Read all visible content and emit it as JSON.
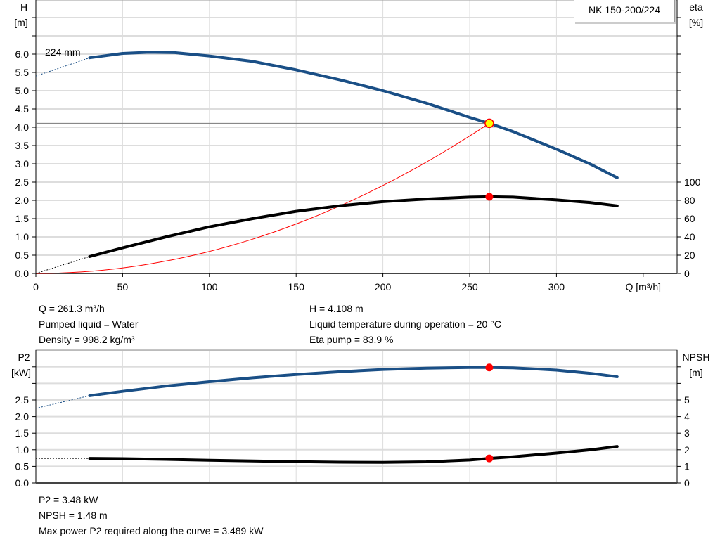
{
  "chart_data": [
    {
      "type": "line",
      "title": "NK 150-200/224",
      "xlabel": "Q [m³/h]",
      "ylabel_left": [
        "H",
        "[m]"
      ],
      "ylabel_right": [
        "eta",
        "[%]"
      ],
      "xlim": [
        0,
        350
      ],
      "ylim_left": [
        0,
        7
      ],
      "ylim_right_eta": [
        0,
        100
      ],
      "x_ticks": [
        "0",
        "50",
        "100",
        "150",
        "200",
        "250",
        "300"
      ],
      "y_ticks_left": [
        "0.0",
        "0.5",
        "1.0",
        "1.5",
        "2.0",
        "2.5",
        "3.0",
        "3.5",
        "4.0",
        "4.5",
        "5.0",
        "5.5",
        "6.0"
      ],
      "y_ticks_right": [
        "0",
        "20",
        "40",
        "60",
        "80",
        "100"
      ],
      "grid": true,
      "curve_label": "224 mm",
      "series": [
        {
          "key": "H",
          "color": "#1a4f86",
          "axis": "left",
          "dashed_x": [
            0,
            31
          ],
          "dashed_y": [
            5.4,
            5.9
          ],
          "x": [
            31,
            50,
            65,
            80,
            100,
            125,
            150,
            175,
            200,
            225,
            250,
            261.3,
            275,
            300,
            320,
            335
          ],
          "y": [
            5.9,
            6.02,
            6.05,
            6.04,
            5.95,
            5.8,
            5.57,
            5.3,
            5.0,
            4.66,
            4.27,
            4.108,
            3.88,
            3.4,
            2.98,
            2.62
          ]
        },
        {
          "key": "eta",
          "color": "#000000",
          "axis": "right",
          "dashed_x": [
            0,
            31
          ],
          "dashed_y": [
            0,
            18.5
          ],
          "x": [
            31,
            50,
            75,
            100,
            125,
            150,
            175,
            200,
            225,
            250,
            261.3,
            275,
            300,
            320,
            335
          ],
          "y": [
            18.5,
            28,
            40,
            51,
            60,
            68,
            74,
            78.5,
            81.5,
            83.5,
            83.9,
            83.5,
            80.5,
            77.5,
            74
          ]
        },
        {
          "key": "system",
          "color": "#ff0000",
          "axis": "left",
          "system_curve": true,
          "x_end": 261.3,
          "y_end": 4.108
        }
      ],
      "operating_point": {
        "Q": 261.3,
        "H": 4.108,
        "eta": 83.9
      }
    },
    {
      "type": "line",
      "ylabel_left": [
        "P2",
        "[kW]"
      ],
      "ylabel_right": [
        "NPSH",
        "[m]"
      ],
      "xlim": [
        0,
        350
      ],
      "ylim_left": [
        0,
        4
      ],
      "ylim_right": [
        0,
        8
      ],
      "y_ticks_left": [
        "0.0",
        "0.5",
        "1.0",
        "1.5",
        "2.0",
        "2.5"
      ],
      "y_ticks_right": [
        "0",
        "1",
        "2",
        "3",
        "4",
        "5"
      ],
      "grid": true,
      "series": [
        {
          "key": "P2",
          "color": "#1a4f86",
          "axis": "left",
          "dashed_x": [
            0,
            31
          ],
          "dashed_y": [
            2.25,
            2.63
          ],
          "x": [
            31,
            50,
            75,
            100,
            125,
            150,
            175,
            200,
            225,
            250,
            261.3,
            275,
            300,
            320,
            335
          ],
          "y": [
            2.63,
            2.76,
            2.92,
            3.05,
            3.17,
            3.27,
            3.35,
            3.42,
            3.46,
            3.48,
            3.48,
            3.47,
            3.4,
            3.3,
            3.2
          ]
        },
        {
          "key": "NPSH",
          "color": "#000000",
          "axis": "right",
          "dashed_x": [
            0,
            31
          ],
          "dashed_y": [
            1.48,
            1.48
          ],
          "x": [
            31,
            50,
            75,
            100,
            125,
            150,
            175,
            200,
            225,
            250,
            261.3,
            275,
            300,
            320,
            335
          ],
          "y": [
            1.48,
            1.46,
            1.42,
            1.37,
            1.32,
            1.28,
            1.25,
            1.24,
            1.27,
            1.38,
            1.48,
            1.58,
            1.8,
            2.0,
            2.2
          ]
        }
      ],
      "operating_point": {
        "Q": 261.3,
        "P2": 3.48,
        "NPSH": 1.48
      }
    }
  ],
  "info_top": {
    "q": "Q = 261.3 m³/h",
    "liquid": "Pumped liquid = Water",
    "density": "Density = 998.2 kg/m³",
    "h": "H = 4.108 m",
    "temp": "Liquid temperature during operation = 20 °C",
    "eta": "Eta pump = 83.9 %"
  },
  "info_bottom": {
    "p2": "P2 = 3.48 kW",
    "npsh": "NPSH = 1.48 m",
    "max_power": "Max power P2 required along the curve = 3.489 kW"
  }
}
